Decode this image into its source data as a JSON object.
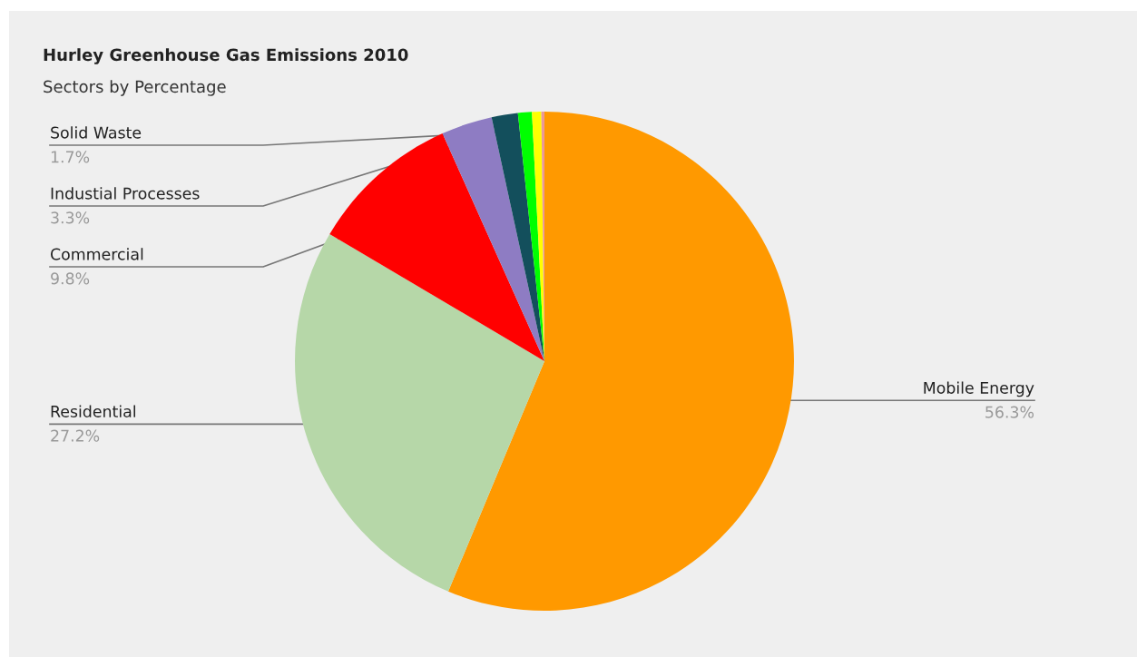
{
  "chart_data": {
    "type": "pie",
    "title": "Hurley Greenhouse Gas Emissions 2010",
    "subtitle": "Sectors by Percentage",
    "categories": [
      "Mobile Energy",
      "Residential",
      "Commercial",
      "Industial Processes",
      "Solid Waste",
      null,
      null,
      null
    ],
    "values": [
      56.3,
      27.2,
      9.8,
      3.3,
      1.7,
      0.9,
      0.6,
      0.2
    ],
    "colors": [
      "#ff9900",
      "#b6d7a8",
      "#ff0000",
      "#8e7cc3",
      "#134f5c",
      "#00ff00",
      "#ffff00",
      "#ea9999"
    ],
    "value_labels": [
      "56.3%",
      "27.2%",
      "9.8%",
      "3.3%",
      "1.7%",
      null,
      null,
      null
    ]
  }
}
